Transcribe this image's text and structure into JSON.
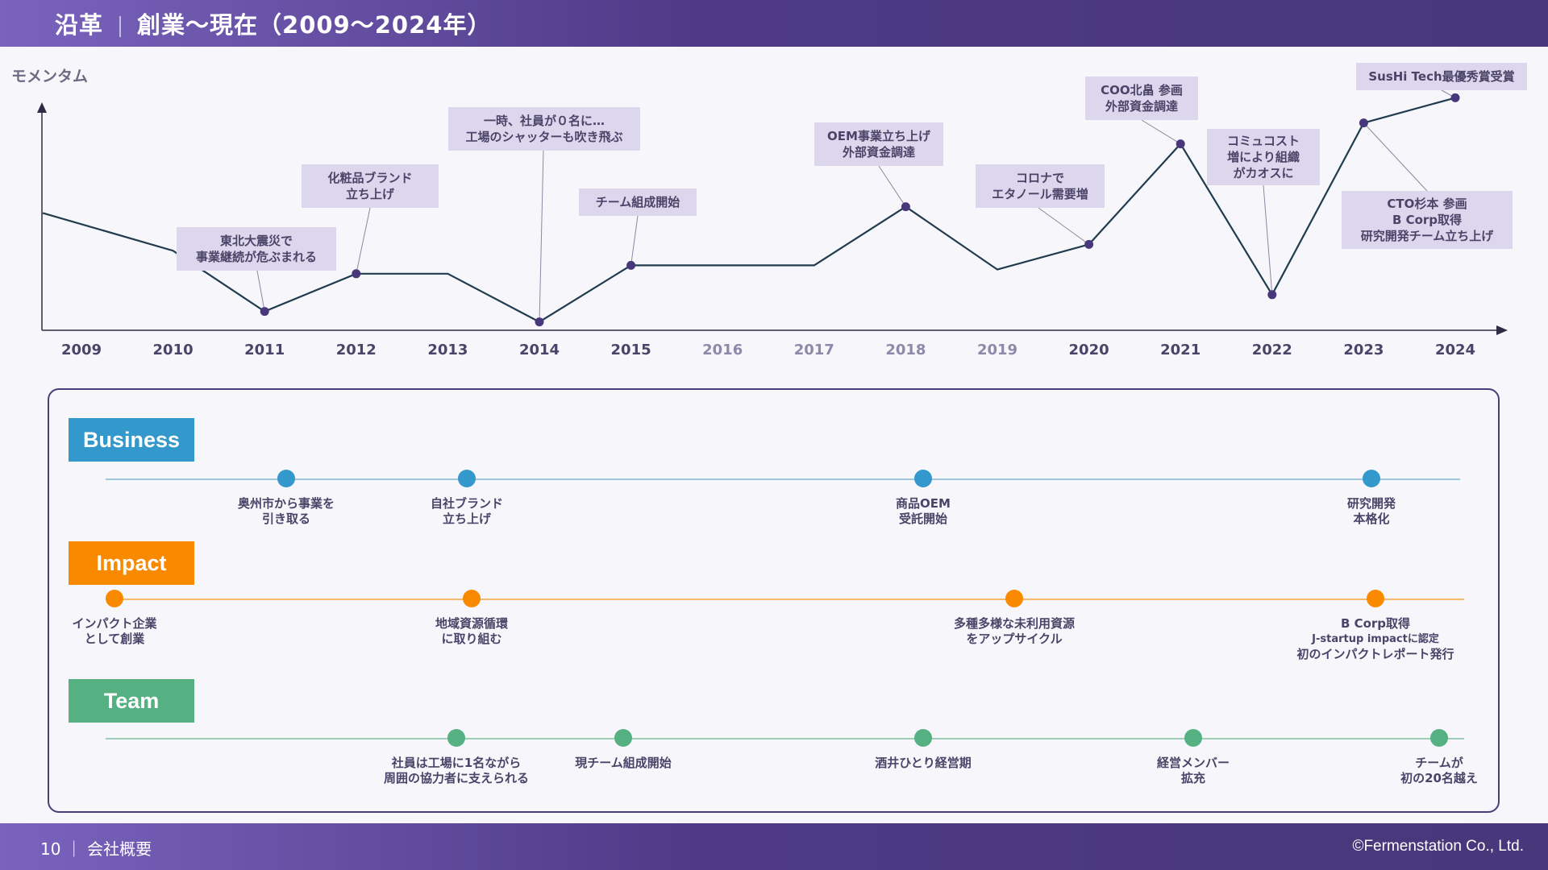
{
  "header": {
    "title_main": "沿革",
    "title_sub": "創業〜現在（2009〜2024年）"
  },
  "chart_data": {
    "type": "line",
    "ylabel": "モメンタム",
    "categories": [
      "2009",
      "2010",
      "2011",
      "2012",
      "2013",
      "2014",
      "2015",
      "2016",
      "2017",
      "2018",
      "2019",
      "2020",
      "2021",
      "2022",
      "2023",
      "2024"
    ],
    "series": [
      {
        "values": [
          56,
          38,
          9,
          27,
          27,
          4,
          31,
          31,
          31,
          59,
          29,
          41,
          89,
          17,
          99,
          111
        ]
      }
    ],
    "annotations": [
      {
        "year": "2011",
        "lines": [
          "東北大震災で",
          "事業継続が危ぶまれる"
        ]
      },
      {
        "year": "2012",
        "lines": [
          "化粧品ブランド",
          "立ち上げ"
        ]
      },
      {
        "year": "2014",
        "lines": [
          "一時、社員が０名に…",
          "工場のシャッターも吹き飛ぶ"
        ]
      },
      {
        "year": "2015",
        "lines": [
          "チーム組成開始"
        ]
      },
      {
        "year": "2018",
        "lines": [
          "OEM事業立ち上げ",
          "外部資金調達"
        ]
      },
      {
        "year": "2020",
        "lines": [
          "コロナで",
          "エタノール需要増"
        ]
      },
      {
        "year": "2021",
        "lines": [
          "COO北畠 参画",
          "外部資金調達"
        ]
      },
      {
        "year": "2022",
        "lines": [
          "コミュコスト",
          "増により組織",
          "がカオスに"
        ]
      },
      {
        "year": "2023",
        "lines": [
          "CTO杉本 参画",
          "B Corp取得",
          "研究開発チーム立ち上げ"
        ]
      },
      {
        "year": "2024",
        "lines": [
          "SusHi Tech最優秀賞受賞"
        ]
      }
    ]
  },
  "colors": {
    "business": "#3399cc",
    "impact": "#f98a00",
    "team": "#55b082",
    "line": "#1f3b4d",
    "point": "#48377a",
    "year_active": "#4b4468",
    "year_muted": "#8e89a8"
  },
  "tracks": {
    "business": {
      "label": "Business",
      "events": [
        {
          "lines": [
            "奥州市から事業を",
            "引き取る"
          ]
        },
        {
          "lines": [
            "自社ブランド",
            "立ち上げ"
          ]
        },
        {
          "lines": [
            "商品OEM",
            "受託開始"
          ]
        },
        {
          "lines": [
            "研究開発",
            "本格化"
          ]
        }
      ]
    },
    "impact": {
      "label": "Impact",
      "events": [
        {
          "lines": [
            "インパクト企業",
            "として創業"
          ]
        },
        {
          "lines": [
            "地域資源循環",
            "に取り組む"
          ]
        },
        {
          "lines": [
            "多種多様な未利用資源",
            "をアップサイクル"
          ]
        },
        {
          "lines": [
            "B Corp取得",
            "J-startup impactに認定",
            "初のインパクトレポート発行"
          ]
        }
      ]
    },
    "team": {
      "label": "Team",
      "events": [
        {
          "lines": [
            "社員は工場に1名ながら",
            "周囲の協力者に支えられる"
          ]
        },
        {
          "lines": [
            "現チーム組成開始"
          ]
        },
        {
          "lines": [
            "酒井ひとり経営期"
          ]
        },
        {
          "lines": [
            "経営メンバー",
            "拡充"
          ]
        },
        {
          "lines": [
            "チームが",
            "初の20名越え"
          ]
        }
      ]
    }
  },
  "footer": {
    "page": "10 ｜",
    "section": "会社概要",
    "copyright": "©Fermenstation Co., Ltd."
  }
}
